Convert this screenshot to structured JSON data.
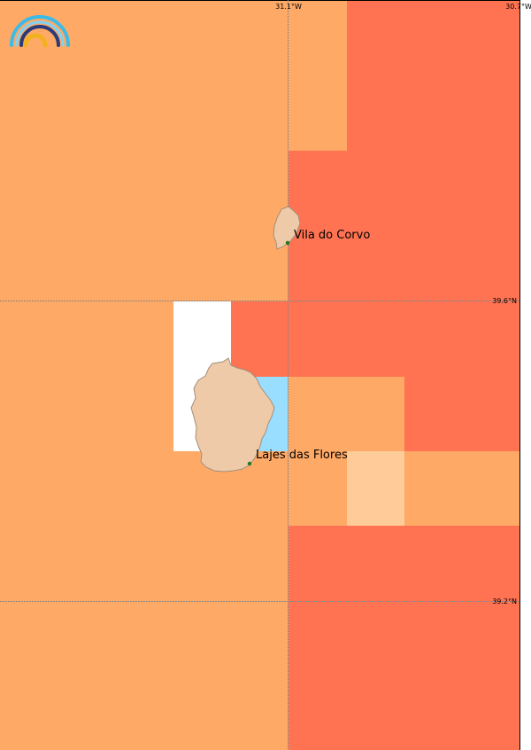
{
  "map": {
    "longitude_labels": [
      "31.1°W",
      "30.7°W"
    ],
    "latitude_labels": [
      "39.6°N",
      "39.2°N"
    ],
    "places": [
      {
        "name": "Vila do Corvo"
      },
      {
        "name": "Lajes das Flores"
      }
    ],
    "logo": {
      "icon": "rainbow-logo-icon"
    },
    "colors": {
      "light_orange": "#ffa966",
      "red_orange": "#ff7352",
      "pale_peach": "#ffcc99",
      "light_blue": "#99ddff",
      "no_data": "#ffffff",
      "land": "#efcaa8",
      "land_border": "#a38f7d",
      "gridline": "#888888",
      "town_dot": "#1e7a1e"
    }
  }
}
